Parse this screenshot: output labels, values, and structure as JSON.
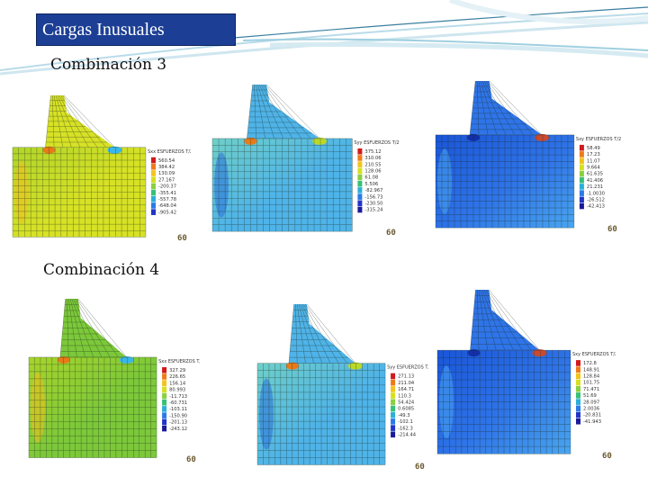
{
  "slide": {
    "title": "Cargas Inusuales",
    "section_3": "Combinación 3",
    "section_4": "Combinación 4"
  },
  "panels": [
    {
      "id": "c3-p1",
      "legend_title": "Sxx ESFUERZOS T/2",
      "legend_values": [
        "560.54",
        "384.42",
        "130.09",
        "27.167",
        "-200.37",
        "-355.41",
        "-557.78",
        "-648.04",
        "-905.42"
      ],
      "tag": "60",
      "colors": [
        "#b0d42a",
        "#d7e126",
        "#f0c021",
        "#e87a18",
        "#3bb7e8"
      ]
    },
    {
      "id": "c3-p2",
      "legend_title": "Syy ESFUERZOS T/2",
      "legend_values": [
        "375.12",
        "310.06",
        "210.55",
        "128.06",
        "61.08",
        "5.506",
        "-82.967",
        "-156.73",
        "-230.50",
        "-315.24"
      ],
      "tag": "60",
      "colors": [
        "#6fcfc8",
        "#4fb3e8",
        "#2a6fd8",
        "#e87a18",
        "#bcd82a"
      ]
    },
    {
      "id": "c3-p3",
      "legend_title": "Sxy ESFUERZOS T/2",
      "legend_values": [
        "58.49",
        "17.23",
        "11.07",
        "9.664",
        "61.635",
        "41.406",
        "21.231",
        "-1.0030",
        "-26.512",
        "-42.413"
      ],
      "tag": "60",
      "colors": [
        "#1a55d8",
        "#2f74e8",
        "#4aa6f0",
        "#1230a8",
        "#c94a30"
      ]
    },
    {
      "id": "c4-p1",
      "legend_title": "Sxx ESFUERZOS T/2",
      "legend_values": [
        "327.29",
        "226.65",
        "156.14",
        "80.993",
        "-11.713",
        "-60.731",
        "-103.11",
        "-150.90",
        "-201.13",
        "-243.12"
      ],
      "tag": "60",
      "colors": [
        "#a8d42a",
        "#7cc83a",
        "#f0c021",
        "#e87a18",
        "#3bb7e8"
      ]
    },
    {
      "id": "c4-p2",
      "legend_title": "Syy ESFUERZOS T/2",
      "legend_values": [
        "271.13",
        "211.04",
        "164.71",
        "110.3",
        "54.424",
        "0.6085",
        "-49.3",
        "-102.1",
        "-162.3",
        "-214.44"
      ],
      "tag": "60",
      "colors": [
        "#6fcfc8",
        "#4fb3e8",
        "#2a6fd8",
        "#e87a18",
        "#bcd82a"
      ]
    },
    {
      "id": "c4-p3",
      "legend_title": "Sxy ESFUERZOS T/2",
      "legend_values": [
        "172.8",
        "148.91",
        "128.84",
        "101.75",
        "71.471",
        "51.69",
        "28.097",
        "2.0036",
        "-20.831",
        "-41.943"
      ],
      "tag": "60",
      "colors": [
        "#1a55d8",
        "#2f74e8",
        "#4aa6f0",
        "#1230a8",
        "#c94a30"
      ]
    }
  ],
  "legend_scale_colors": [
    "#d21a1a",
    "#f07a18",
    "#f2c41c",
    "#d6e020",
    "#8ad040",
    "#38c078",
    "#2ab0d8",
    "#2a7ae8",
    "#2036c8",
    "#1a1a9a"
  ]
}
